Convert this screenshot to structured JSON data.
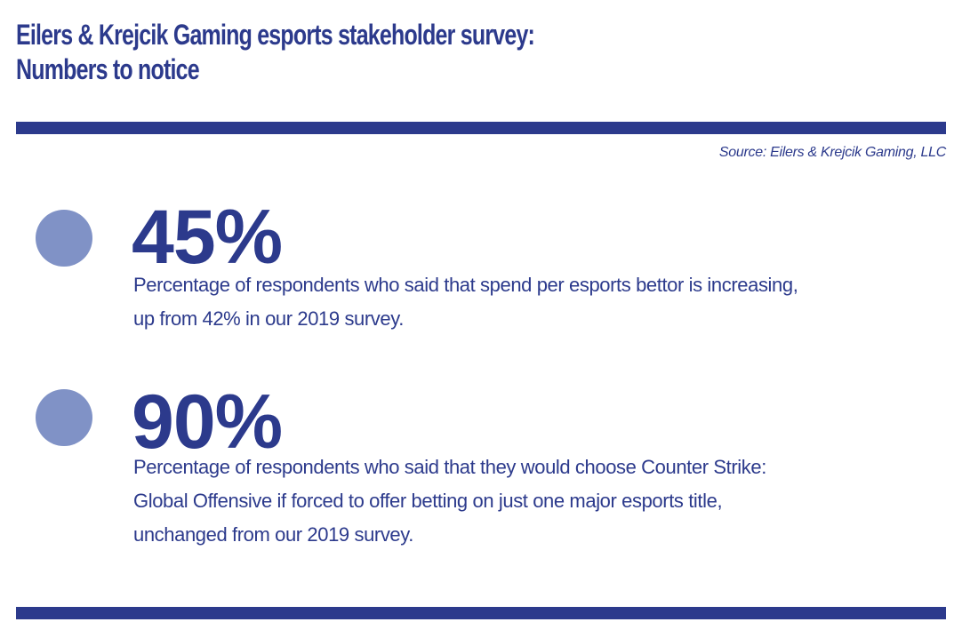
{
  "page": {
    "title_line1": "Eilers & Krejcik Gaming esports stakeholder survey:",
    "title_line2": "Numbers to notice",
    "source": "Source: Eilers & Krejcik Gaming, LLC"
  },
  "stats": [
    {
      "value": "45%",
      "desc_lines": [
        "Percentage of respondents who said that spend per esports bettor is increasing,",
        "up from 42% in our 2019 survey."
      ]
    },
    {
      "value": "90%",
      "desc_lines": [
        "Percentage of respondents who said that they would choose Counter Strike:",
        "Global Offensive if forced to offer betting on just one major esports title,",
        "unchanged from our 2019 survey."
      ]
    }
  ],
  "colors": {
    "accent_dark_blue": "#2c3a8c",
    "bullet_blue": "#8092c6",
    "background": "#ffffff"
  }
}
